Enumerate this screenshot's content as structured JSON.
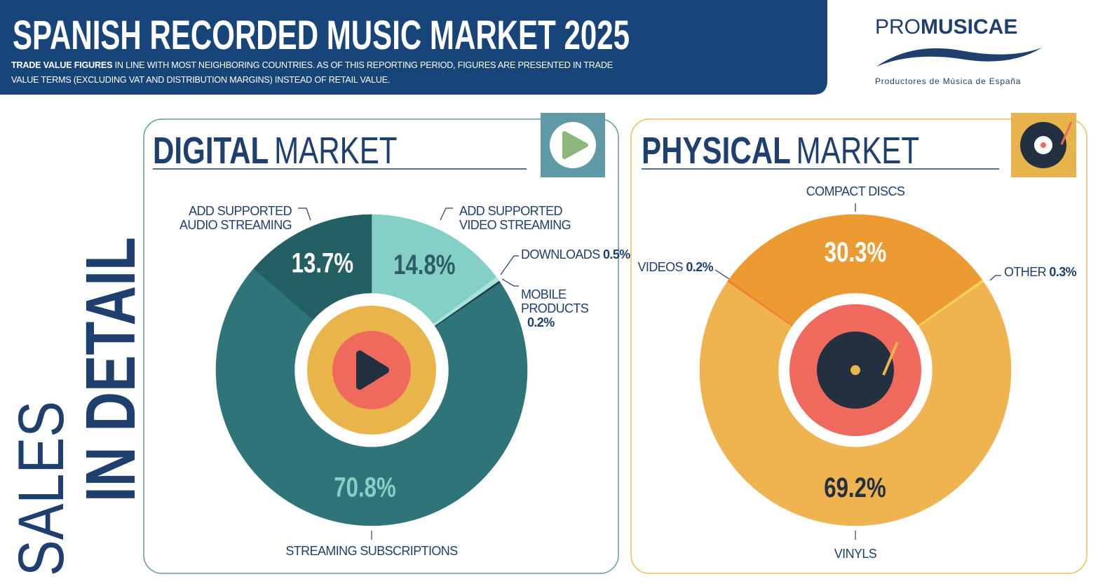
{
  "header": {
    "title": "SPANISH RECORDED MUSIC MARKET 2025",
    "subtitle_bold": "TRADE VALUE FIGURES",
    "subtitle": "IN LINE WITH MOST NEIGHBORING COUNTRIES. AS OF THIS REPORTING PERIOD, FIGURES ARE PRESENTED IN TRADE VALUE TERMS (EXCLUDING VAT AND DISTRIBUTION MARGINS) INSTEAD OF RETAIL VALUE."
  },
  "logo": {
    "name_light": "PRO",
    "name_bold": "MUSICAE",
    "tagline": "Productores de Música de España"
  },
  "side_title": {
    "light": "SALES",
    "bold": "IN DETAIL"
  },
  "chart_data": [
    {
      "type": "donut",
      "title_bold": "DIGITAL",
      "title_light": "MARKET",
      "categories": [
        "ADD SUPPORTED VIDEO STREAMING",
        "DOWNLOADS",
        "MOBILE PRODUCTS",
        "STREAMING SUBSCRIPTIONS",
        "ADD SUPPORTED AUDIO STREAMING"
      ],
      "values": [
        14.8,
        0.5,
        0.2,
        70.8,
        13.7
      ],
      "value_labels": [
        "14.8%",
        "0.5%",
        "0.2%",
        "70.8%",
        "13.7%"
      ],
      "colors": [
        "#84cfc6",
        "#a9e2da",
        "#1b3a4b",
        "#2e7479",
        "#245f63"
      ]
    },
    {
      "type": "donut",
      "title_bold": "PHYSICAL",
      "title_light": "MARKET",
      "categories": [
        "COMPACT DISCS",
        "OTHER",
        "VINYLS",
        "VIDEOS"
      ],
      "values": [
        30.3,
        0.3,
        69.2,
        0.2
      ],
      "value_labels": [
        "30.3%",
        "0.3%",
        "69.2%",
        "0.2%"
      ],
      "colors": [
        "#ec9b33",
        "#f5d35a",
        "#efb350",
        "#ef7f2e"
      ]
    }
  ]
}
